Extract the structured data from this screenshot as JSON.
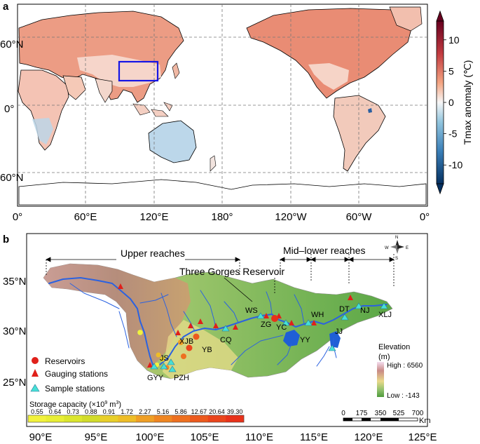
{
  "panel_a": {
    "label": "a",
    "lat_labels": [
      "60°N",
      "0°",
      "60°N"
    ],
    "lon_labels": [
      "0°",
      "60°E",
      "120°E",
      "180°",
      "120°W",
      "60°W",
      "0°"
    ],
    "colorbar": {
      "title": "Tmax anomaly (℃)",
      "ticks": [
        "10",
        "5",
        "0",
        "-5",
        "-10"
      ],
      "tick_values": [
        10,
        5,
        0,
        -5,
        -10
      ],
      "range": [
        -13,
        13
      ],
      "colors": [
        "#67001f",
        "#d6604d",
        "#f7f7f7",
        "#4393c3",
        "#053061"
      ]
    },
    "highlight_box_color": "#1515e6"
  },
  "panel_b": {
    "label": "b",
    "reach_labels": {
      "upper": "Upper reaches",
      "midlower": "Mid–lower reaches"
    },
    "tgr_label": "Three Gorges Reservoir",
    "lat_labels": [
      "35°N",
      "30°N",
      "25°N"
    ],
    "lon_labels": [
      "90°E",
      "95°E",
      "100°E",
      "105°E",
      "110°E",
      "115°E",
      "120°E",
      "125°E"
    ],
    "stations": [
      "WS",
      "ZG",
      "YC",
      "WH",
      "DT",
      "NJ",
      "XLJ",
      "JJ",
      "YY",
      "XJB",
      "YB",
      "CQ",
      "JS",
      "GYY",
      "PZH"
    ],
    "legend": {
      "reservoirs": "Reservoirs",
      "gauging": "Gauging stations",
      "sample": "Sample stations"
    },
    "elevation": {
      "title": "Elevation",
      "unit": "(m)",
      "high": "High : 6560",
      "low": "Low : -143"
    },
    "storage": {
      "title": "Storage capacity (×10",
      "sup": "9",
      "unit": " m",
      "sup2": "3",
      "close": ")",
      "values": [
        "0.55",
        "0.64",
        "0.73",
        "0.88",
        "0.91",
        "1.72",
        "2.27",
        "5.16",
        "5.86",
        "12.67",
        "20.64",
        "39.30"
      ],
      "colors": [
        "#f2f23c",
        "#e8ee35",
        "#dbe62e",
        "#d2dc2b",
        "#e8cf2a",
        "#eebd27",
        "#ef9f25",
        "#ef8622",
        "#ee7020",
        "#ec5a1e",
        "#ea451c",
        "#e8321a"
      ]
    },
    "scale": {
      "ticks": [
        "0",
        "175",
        "350",
        "525",
        "700"
      ],
      "unit": "Km"
    },
    "compass": {
      "n": "N",
      "s": "S",
      "e": "E",
      "w": "W"
    }
  }
}
